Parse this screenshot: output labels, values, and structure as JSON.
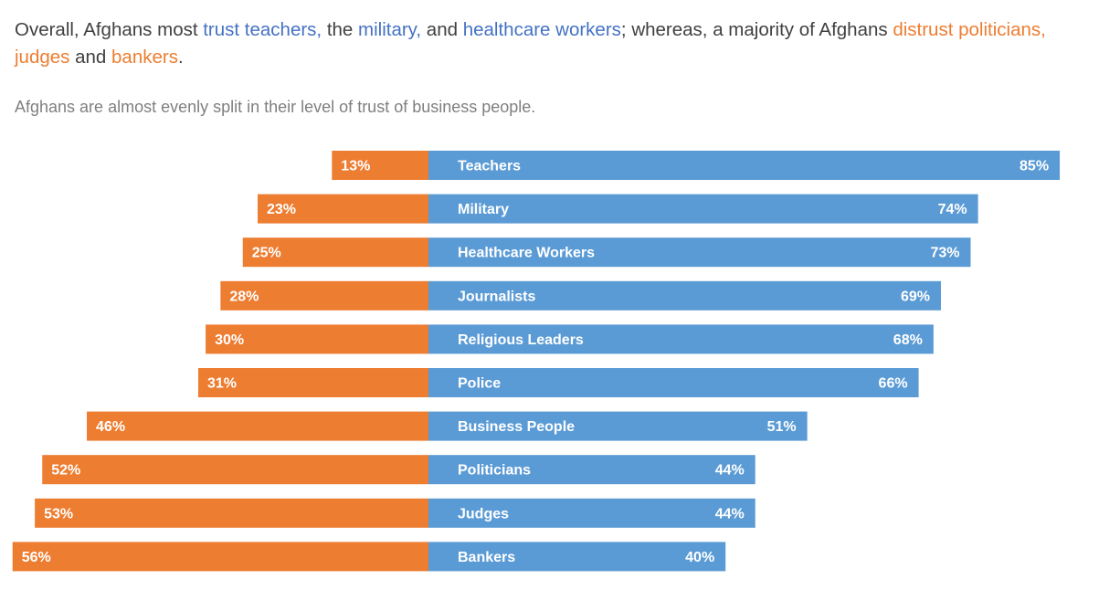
{
  "headline": {
    "segments": [
      {
        "text": "Overall,  Afghans most ",
        "color": "#404040"
      },
      {
        "text": "trust teachers,",
        "color": "#4472c4"
      },
      {
        "text": " the ",
        "color": "#404040"
      },
      {
        "text": "military,",
        "color": "#4472c4"
      },
      {
        "text": "  and ",
        "color": "#404040"
      },
      {
        "text": "healthcare workers",
        "color": "#4472c4"
      },
      {
        "text": "; whereas, a majority of Afghans ",
        "color": "#404040"
      },
      {
        "text": "distrust politicians, judges",
        "color": "#ed7d31"
      },
      {
        "text": " and ",
        "color": "#404040"
      },
      {
        "text": "bankers",
        "color": "#ed7d31"
      },
      {
        "text": ".",
        "color": "#404040"
      }
    ]
  },
  "subtitle": "Afghans are almost evenly split in their level of trust of business people.",
  "colors": {
    "trust": "#5b9bd5",
    "distrust": "#ed7d31",
    "label": "#ffffff"
  },
  "chart_data": {
    "type": "bar",
    "orientation": "horizontal-diverging",
    "categories": [
      "Teachers",
      "Military",
      "Healthcare Workers",
      "Journalists",
      "Religious Leaders",
      "Police",
      "Business People",
      "Politicians",
      "Judges",
      "Bankers"
    ],
    "series": [
      {
        "values": [
          85,
          74,
          73,
          69,
          68,
          66,
          51,
          44,
          44,
          40
        ],
        "labels": [
          "85%",
          "74%",
          "73%",
          "69%",
          "68%",
          "66%",
          "51%",
          "44%",
          "44%",
          "40%"
        ],
        "direction": "right",
        "color": "#5b9bd5"
      },
      {
        "values": [
          13,
          23,
          25,
          28,
          30,
          31,
          46,
          52,
          53,
          56
        ],
        "labels": [
          "13%",
          "23%",
          "25%",
          "28%",
          "30%",
          "31%",
          "46%",
          "52%",
          "53%",
          "56%"
        ],
        "direction": "left",
        "color": "#ed7d31"
      }
    ],
    "unit": "%",
    "grid": false,
    "legend": "none"
  }
}
